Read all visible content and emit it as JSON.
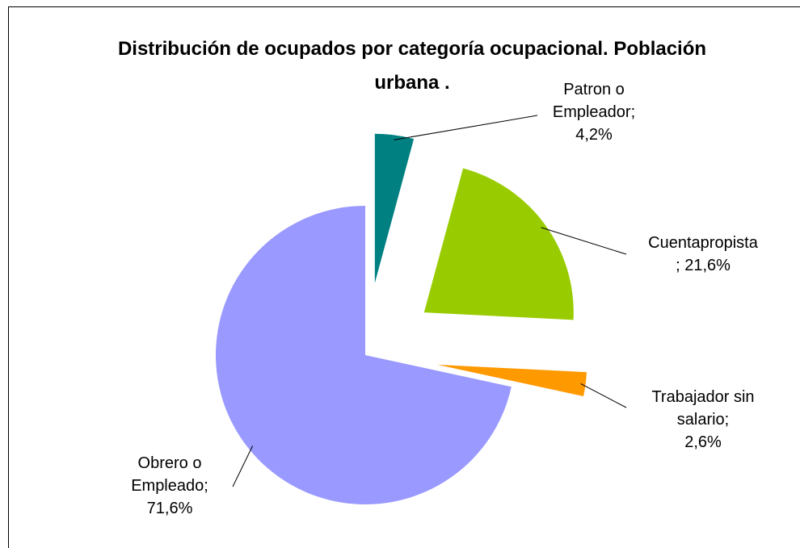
{
  "chart_data": {
    "type": "pie",
    "title": "Distribución de ocupados por categoría ocupacional. Población urbana .",
    "categories": [
      "Patron o Empleador;",
      "Cuentapropista",
      "Trabajador sin salario;",
      "Obrero o Empleado;"
    ],
    "values": [
      4.2,
      21.6,
      2.6,
      71.6
    ],
    "value_labels": [
      "4,2%",
      "; 21,6%",
      "2,6%",
      "71,6%"
    ],
    "colors": [
      "#008080",
      "#99cc00",
      "#ff9900",
      "#9999ff"
    ],
    "exploded": [
      true,
      true,
      true,
      false
    ]
  }
}
